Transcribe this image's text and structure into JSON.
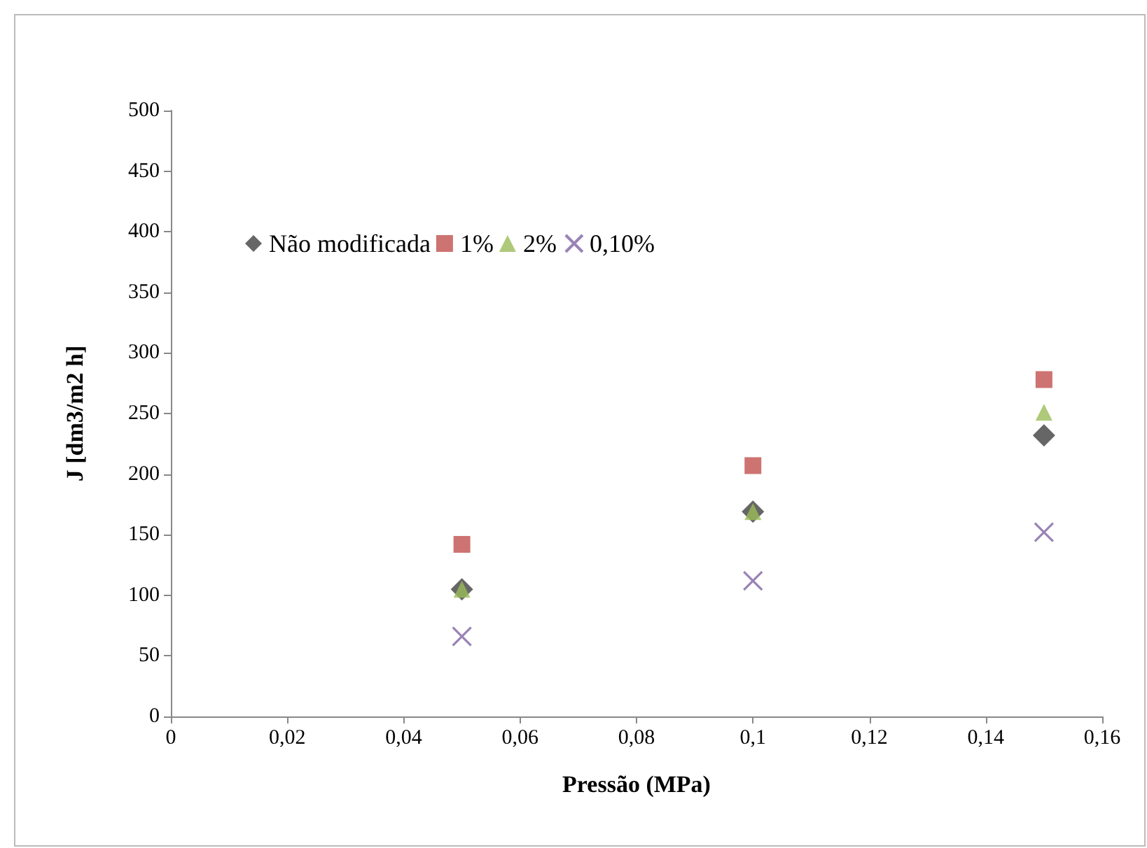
{
  "chart_data": {
    "type": "scatter",
    "xlabel": "Pressão (MPa)",
    "ylabel": "J [dm3/m2 h]",
    "xlim": [
      0,
      0.16
    ],
    "xticks": [
      {
        "value": 0,
        "label": "0"
      },
      {
        "value": 0.02,
        "label": "0,02"
      },
      {
        "value": 0.04,
        "label": "0,04"
      },
      {
        "value": 0.06,
        "label": "0,06"
      },
      {
        "value": 0.08,
        "label": "0,08"
      },
      {
        "value": 0.1,
        "label": "0,1"
      },
      {
        "value": 0.12,
        "label": "0,12"
      },
      {
        "value": 0.14,
        "label": "0,14"
      },
      {
        "value": 0.16,
        "label": "0,16"
      }
    ],
    "ylim": [
      0,
      500
    ],
    "yticks": [
      0,
      50,
      100,
      150,
      200,
      250,
      300,
      350,
      400,
      450,
      500
    ],
    "grid": false,
    "legend": "top left",
    "x": [
      0.05,
      0.1,
      0.15
    ],
    "series": [
      {
        "name": "Não modificada",
        "color": "#404040",
        "marker": "diamond",
        "values": [
          105,
          169,
          232
        ]
      },
      {
        "name": "1%",
        "color": "#c0504d",
        "marker": "square",
        "values": [
          142,
          207,
          278
        ]
      },
      {
        "name": "2%",
        "color": "#9bbb59",
        "marker": "triangle",
        "values": [
          105,
          169,
          251
        ]
      },
      {
        "name": "0,10%",
        "color": "#8064a2",
        "marker": "cross",
        "values": [
          66,
          112,
          152
        ]
      }
    ]
  }
}
